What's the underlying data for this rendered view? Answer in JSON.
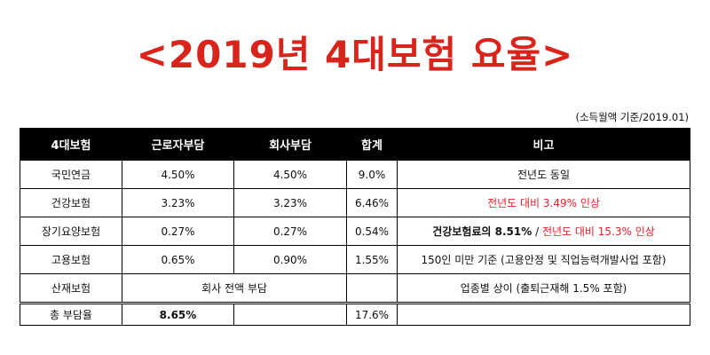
{
  "title": "<2019년 4대보험 요율>",
  "note": "(소득월액 기준/2019.01)",
  "headers": [
    "4대보험",
    "근로자부담",
    "회사부담",
    "합계",
    "비고"
  ],
  "rows": [
    {
      "name": "국민연금",
      "worker": "4.50%",
      "company": "4.50%",
      "total": "9.0%",
      "remark": "전년도 동일"
    },
    {
      "name": "건강보험",
      "worker": "3.23%",
      "company": "3.23%",
      "total": "6.46%",
      "remark_red": "전년도 대비 3.49% 인상"
    },
    {
      "name": "장기요양보험",
      "worker": "0.27%",
      "company": "0.27%",
      "total": "0.54%",
      "remark_bold": "건강보험료의 8.51%",
      "remark_sep": " / ",
      "remark_red": "전년도 대비 15.3% 인상"
    },
    {
      "name": "고용보험",
      "worker": "0.65%",
      "company": "0.90%",
      "total": "1.55%",
      "remark": "150인 미만 기준 (고용안정 및 직업능력개발사업 포함)"
    },
    {
      "name": "산재보험",
      "merged": "회사 전액 부담",
      "total": "",
      "remark": "업종별 상이 (출퇴근재해 1.5% 포함)"
    }
  ],
  "total_row": {
    "name": "총 부담율",
    "worker": "8.65%",
    "company": "",
    "total": "17.6%",
    "remark": ""
  },
  "colors": {
    "title": "#d9241c",
    "highlight": "#e8202a"
  }
}
